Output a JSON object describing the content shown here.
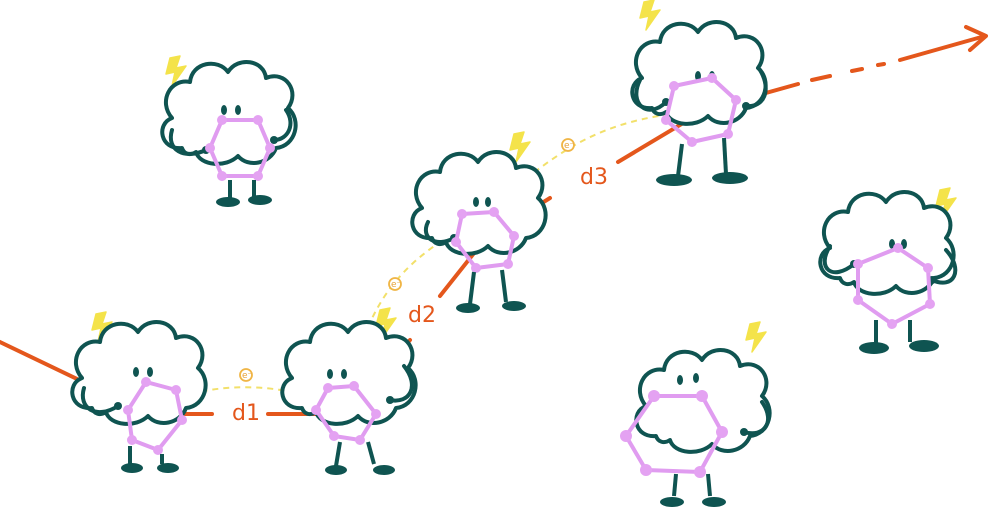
{
  "colors": {
    "outline": "#0f5451",
    "ring": "#e09cf0",
    "ring_node": "#e4a2f2",
    "bolt": "#f4e34a",
    "path": "#e4571c",
    "electron_path": "#f2e06a",
    "electron": "#f0b545"
  },
  "labels": {
    "d1": "d1",
    "d2": "d2",
    "d3": "d3"
  },
  "electron_symbol": "e⁻",
  "characters": [
    {
      "name": "cloud-character-top-left"
    },
    {
      "name": "cloud-character-bottom-left"
    },
    {
      "name": "cloud-character-bottom-middle"
    },
    {
      "name": "cloud-character-middle"
    },
    {
      "name": "cloud-character-top-right"
    },
    {
      "name": "cloud-character-right"
    },
    {
      "name": "cloud-character-bottom-right"
    }
  ]
}
